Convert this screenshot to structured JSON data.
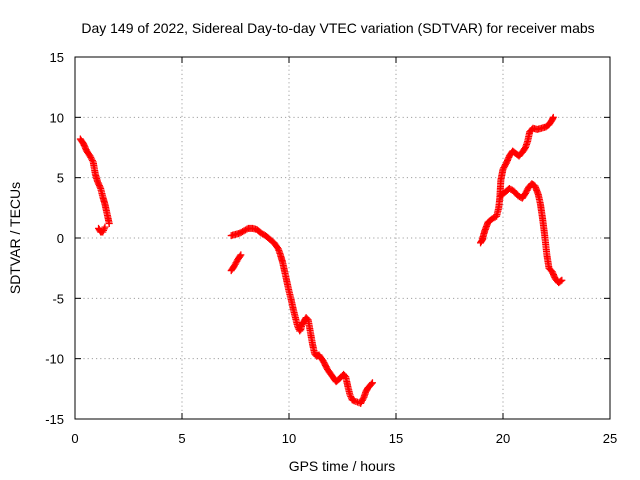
{
  "chart_data": {
    "type": "scatter",
    "title": "Day 149 of 2022, Sidereal Day-to-day VTEC variation (SDTVAR) for receiver mabs",
    "xlabel": "GPS time / hours",
    "ylabel": "SDTVAR / TECUs",
    "xlim": [
      0,
      25
    ],
    "ylim": [
      -15,
      15
    ],
    "xticks": [
      0,
      5,
      10,
      15,
      20,
      25
    ],
    "yticks": [
      15,
      10,
      5,
      0,
      -5,
      -10,
      -15
    ],
    "xtick_labels": [
      "0",
      "5",
      "10",
      "15",
      "20",
      "25"
    ],
    "ytick_labels": [
      "15",
      "10",
      "5",
      "0",
      "-5",
      "-10",
      "-15"
    ],
    "grid": true,
    "marker": "plus",
    "color": "#ff0000",
    "series": [
      {
        "name": "arc-1a",
        "x": [
          0.25,
          0.4,
          0.55,
          0.7,
          0.85,
          0.95,
          1.05,
          1.2,
          1.3,
          1.4,
          1.5,
          1.6
        ],
        "y": [
          8.2,
          7.8,
          7.2,
          6.8,
          6.3,
          5.3,
          4.7,
          4.1,
          3.4,
          2.8,
          2.0,
          1.2
        ]
      },
      {
        "name": "arc-1b",
        "x": [
          1.1,
          1.2,
          1.3,
          1.4
        ],
        "y": [
          0.8,
          0.5,
          0.5,
          0.9
        ]
      },
      {
        "name": "arc-2a",
        "x": [
          7.3,
          7.45,
          7.6,
          7.75
        ],
        "y": [
          -2.7,
          -2.3,
          -1.8,
          -1.4
        ]
      },
      {
        "name": "arc-2b",
        "x": [
          7.3,
          7.5,
          7.7,
          7.9,
          8.1,
          8.3,
          8.5,
          8.7,
          8.9,
          9.1,
          9.3,
          9.5,
          9.6,
          9.7,
          9.8,
          9.9,
          10.0,
          10.1,
          10.2,
          10.3,
          10.4,
          10.5,
          10.55,
          10.6,
          10.7,
          10.8,
          10.9,
          11.0,
          11.1,
          11.2,
          11.3,
          11.4,
          11.6,
          11.8,
          12.0,
          12.2,
          12.4,
          12.55,
          12.65,
          12.75,
          12.85,
          12.95,
          13.05,
          13.2,
          13.35,
          13.5,
          13.6,
          13.7,
          13.8,
          13.9
        ],
        "y": [
          0.2,
          0.3,
          0.4,
          0.6,
          0.8,
          0.8,
          0.7,
          0.4,
          0.2,
          -0.1,
          -0.4,
          -0.9,
          -1.4,
          -2.0,
          -2.8,
          -3.6,
          -4.4,
          -5.1,
          -5.9,
          -6.6,
          -7.3,
          -7.7,
          -7.6,
          -7.2,
          -6.9,
          -6.6,
          -6.8,
          -7.8,
          -8.8,
          -9.6,
          -9.8,
          -9.7,
          -10.2,
          -10.9,
          -11.4,
          -11.9,
          -11.6,
          -11.3,
          -11.5,
          -12.3,
          -13.0,
          -13.4,
          -13.5,
          -13.6,
          -13.7,
          -13.2,
          -12.7,
          -12.4,
          -12.2,
          -12.0
        ]
      },
      {
        "name": "arc-3a",
        "x": [
          19.05,
          19.15,
          19.3,
          19.5,
          19.7,
          19.8,
          19.85,
          19.9,
          20.0,
          20.15,
          20.3,
          20.45,
          20.6,
          20.75,
          20.9,
          21.05,
          21.15,
          21.25,
          21.4,
          21.6,
          21.8,
          22.0,
          22.15,
          22.3,
          22.35
        ],
        "y": [
          0.0,
          0.6,
          1.3,
          1.6,
          1.8,
          2.5,
          3.3,
          4.8,
          5.7,
          6.2,
          6.8,
          7.2,
          7.0,
          6.8,
          7.1,
          7.5,
          8.0,
          8.8,
          9.1,
          9.0,
          9.1,
          9.2,
          9.4,
          9.8,
          10.0
        ]
      },
      {
        "name": "arc-3b",
        "x": [
          18.95,
          19.05
        ],
        "y": [
          -0.4,
          -0.1
        ]
      },
      {
        "name": "arc-3c",
        "x": [
          19.9,
          20.1,
          20.3,
          20.5,
          20.7,
          20.9,
          21.05,
          21.2,
          21.35,
          21.5,
          21.65,
          21.75,
          21.85,
          21.95,
          22.05,
          22.15,
          22.3,
          22.45,
          22.6,
          22.75
        ],
        "y": [
          3.5,
          3.8,
          4.1,
          3.9,
          3.5,
          3.3,
          3.7,
          4.2,
          4.5,
          4.3,
          3.6,
          2.8,
          1.6,
          0.2,
          -1.4,
          -2.5,
          -2.8,
          -3.4,
          -3.7,
          -3.5
        ]
      }
    ]
  }
}
